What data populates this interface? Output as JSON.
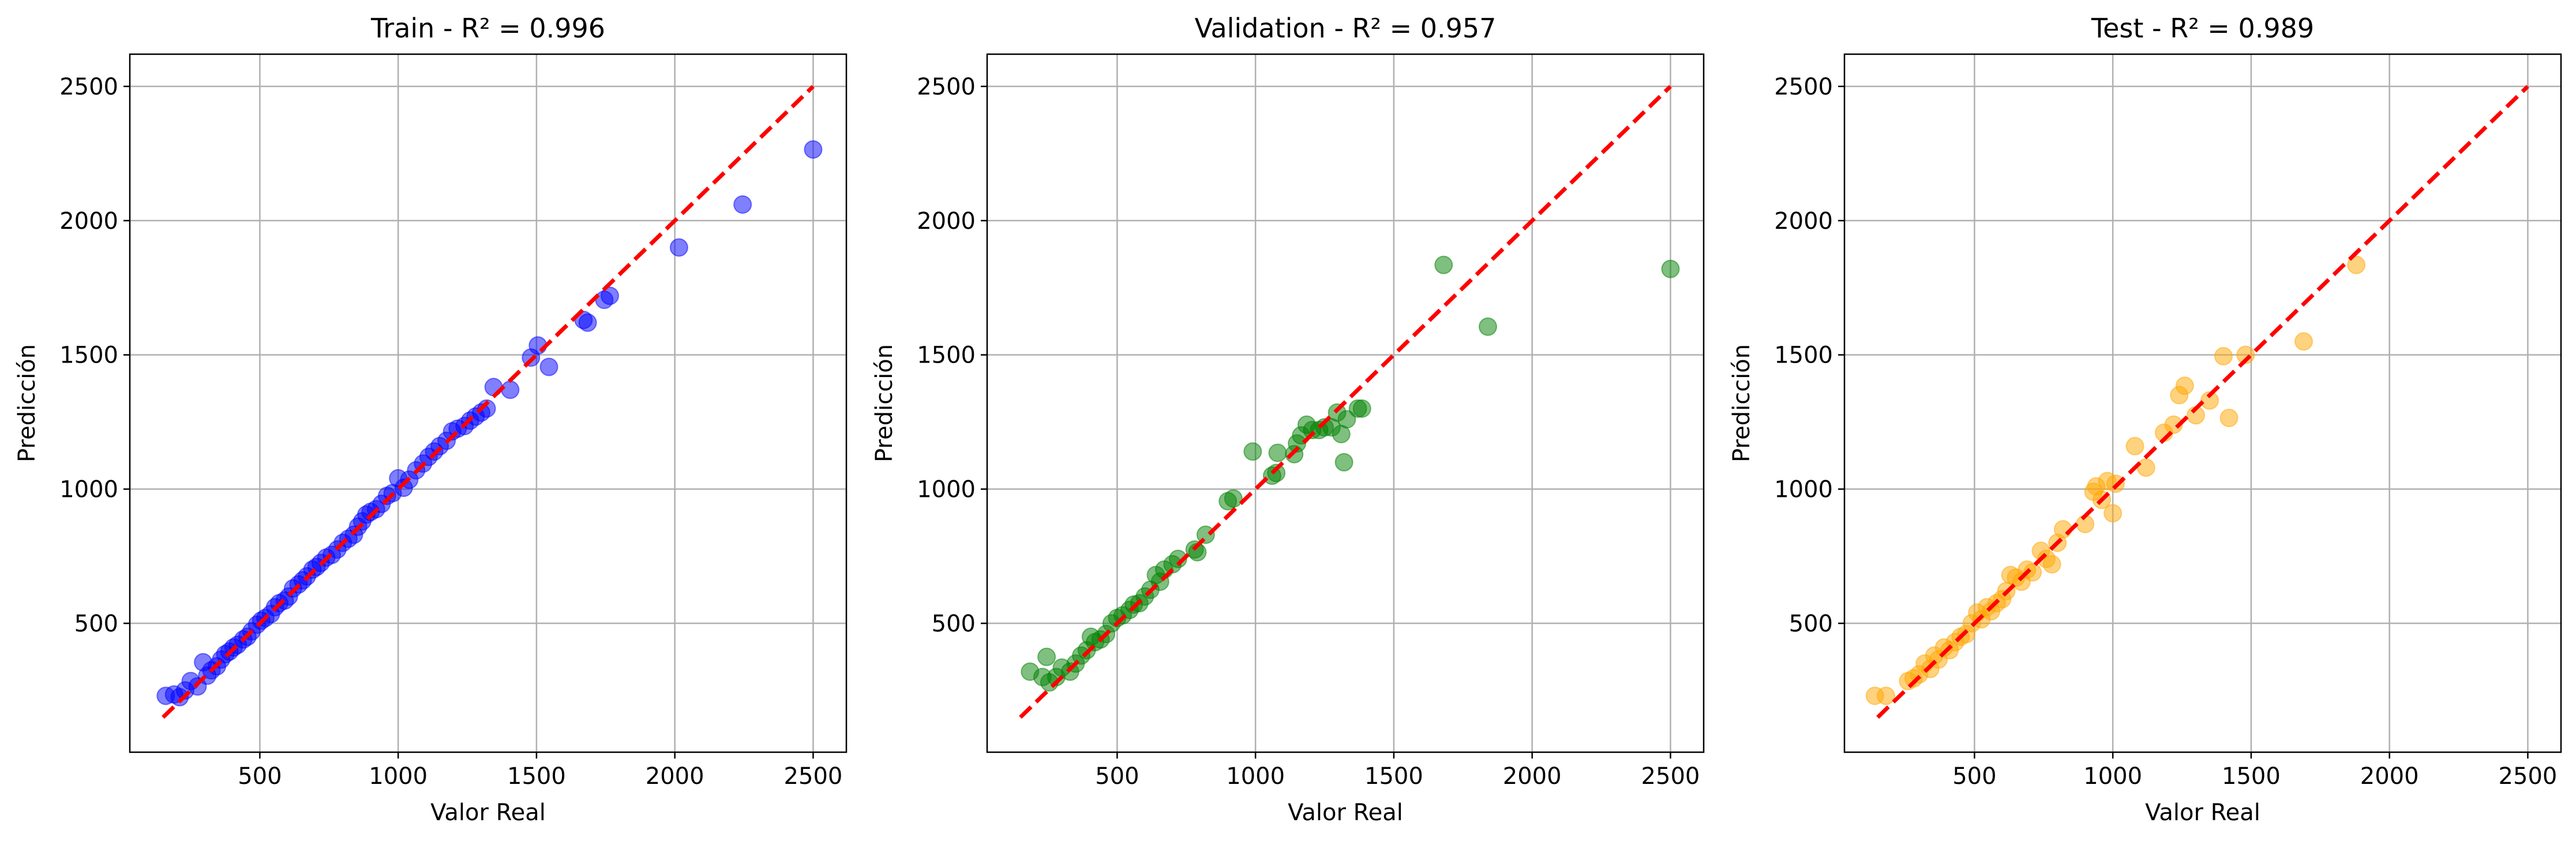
{
  "chart_data": [
    {
      "type": "scatter",
      "title": "Train - R² = 0.996",
      "xlabel": "Valor Real",
      "ylabel": "Predicción",
      "xlim": [
        30,
        2620
      ],
      "ylim": [
        20,
        2620
      ],
      "xticks": [
        500,
        1000,
        1500,
        2000,
        2500
      ],
      "yticks": [
        500,
        1000,
        1500,
        2000,
        2500
      ],
      "grid": true,
      "point_color": "#0000ff",
      "reference_line": {
        "x": [
          150,
          2500
        ],
        "y": [
          150,
          2500
        ],
        "color": "#ff0000",
        "style": "dashed"
      },
      "points": [
        [
          160,
          230
        ],
        [
          190,
          235
        ],
        [
          210,
          225
        ],
        [
          230,
          250
        ],
        [
          250,
          285
        ],
        [
          275,
          265
        ],
        [
          295,
          355
        ],
        [
          310,
          305
        ],
        [
          325,
          325
        ],
        [
          345,
          340
        ],
        [
          360,
          365
        ],
        [
          375,
          385
        ],
        [
          390,
          395
        ],
        [
          405,
          410
        ],
        [
          420,
          420
        ],
        [
          440,
          440
        ],
        [
          455,
          450
        ],
        [
          470,
          470
        ],
        [
          490,
          495
        ],
        [
          505,
          510
        ],
        [
          520,
          520
        ],
        [
          540,
          535
        ],
        [
          555,
          560
        ],
        [
          570,
          575
        ],
        [
          590,
          585
        ],
        [
          605,
          600
        ],
        [
          620,
          630
        ],
        [
          640,
          645
        ],
        [
          655,
          660
        ],
        [
          670,
          675
        ],
        [
          690,
          700
        ],
        [
          705,
          710
        ],
        [
          720,
          725
        ],
        [
          740,
          745
        ],
        [
          760,
          755
        ],
        [
          780,
          775
        ],
        [
          800,
          800
        ],
        [
          820,
          815
        ],
        [
          840,
          830
        ],
        [
          855,
          860
        ],
        [
          870,
          880
        ],
        [
          885,
          905
        ],
        [
          900,
          915
        ],
        [
          920,
          925
        ],
        [
          940,
          945
        ],
        [
          960,
          975
        ],
        [
          980,
          985
        ],
        [
          1000,
          1040
        ],
        [
          1020,
          1005
        ],
        [
          1040,
          1035
        ],
        [
          1065,
          1070
        ],
        [
          1090,
          1095
        ],
        [
          1110,
          1120
        ],
        [
          1130,
          1140
        ],
        [
          1150,
          1160
        ],
        [
          1175,
          1180
        ],
        [
          1195,
          1215
        ],
        [
          1215,
          1225
        ],
        [
          1240,
          1235
        ],
        [
          1260,
          1255
        ],
        [
          1280,
          1270
        ],
        [
          1300,
          1285
        ],
        [
          1320,
          1300
        ],
        [
          1345,
          1380
        ],
        [
          1405,
          1370
        ],
        [
          1480,
          1490
        ],
        [
          1505,
          1535
        ],
        [
          1545,
          1455
        ],
        [
          1670,
          1630
        ],
        [
          1685,
          1620
        ],
        [
          1745,
          1705
        ],
        [
          1765,
          1720
        ],
        [
          2015,
          1900
        ],
        [
          2245,
          2060
        ],
        [
          2500,
          2265
        ]
      ]
    },
    {
      "type": "scatter",
      "title": "Validation - R² = 0.957",
      "xlabel": "Valor Real",
      "ylabel": "Predicción",
      "xlim": [
        30,
        2620
      ],
      "ylim": [
        20,
        2620
      ],
      "xticks": [
        500,
        1000,
        1500,
        2000,
        2500
      ],
      "yticks": [
        500,
        1000,
        1500,
        2000,
        2500
      ],
      "grid": true,
      "point_color": "#008000",
      "reference_line": {
        "x": [
          150,
          2500
        ],
        "y": [
          150,
          2500
        ],
        "color": "#ff0000",
        "style": "dashed"
      },
      "points": [
        [
          185,
          320
        ],
        [
          230,
          300
        ],
        [
          245,
          375
        ],
        [
          255,
          280
        ],
        [
          280,
          300
        ],
        [
          300,
          335
        ],
        [
          330,
          320
        ],
        [
          350,
          350
        ],
        [
          370,
          380
        ],
        [
          390,
          400
        ],
        [
          405,
          450
        ],
        [
          420,
          430
        ],
        [
          440,
          440
        ],
        [
          460,
          460
        ],
        [
          480,
          500
        ],
        [
          500,
          520
        ],
        [
          520,
          530
        ],
        [
          545,
          550
        ],
        [
          560,
          570
        ],
        [
          580,
          575
        ],
        [
          600,
          600
        ],
        [
          620,
          625
        ],
        [
          640,
          680
        ],
        [
          655,
          655
        ],
        [
          670,
          700
        ],
        [
          700,
          720
        ],
        [
          720,
          740
        ],
        [
          780,
          775
        ],
        [
          790,
          765
        ],
        [
          820,
          830
        ],
        [
          900,
          955
        ],
        [
          920,
          965
        ],
        [
          990,
          1140
        ],
        [
          1060,
          1050
        ],
        [
          1075,
          1060
        ],
        [
          1080,
          1135
        ],
        [
          1140,
          1130
        ],
        [
          1150,
          1170
        ],
        [
          1165,
          1200
        ],
        [
          1185,
          1240
        ],
        [
          1205,
          1220
        ],
        [
          1230,
          1220
        ],
        [
          1250,
          1230
        ],
        [
          1275,
          1230
        ],
        [
          1295,
          1285
        ],
        [
          1310,
          1205
        ],
        [
          1320,
          1100
        ],
        [
          1330,
          1260
        ],
        [
          1370,
          1300
        ],
        [
          1385,
          1300
        ],
        [
          1680,
          1835
        ],
        [
          1840,
          1605
        ],
        [
          2500,
          1820
        ]
      ]
    },
    {
      "type": "scatter",
      "title": "Test - R² = 0.989",
      "xlabel": "Valor Real",
      "ylabel": "Predicción",
      "xlim": [
        30,
        2620
      ],
      "ylim": [
        20,
        2620
      ],
      "xticks": [
        500,
        1000,
        1500,
        2000,
        2500
      ],
      "yticks": [
        500,
        1000,
        1500,
        2000,
        2500
      ],
      "grid": true,
      "point_color": "#ffa500",
      "reference_line": {
        "x": [
          150,
          2500
        ],
        "y": [
          150,
          2500
        ],
        "color": "#ff0000",
        "style": "dashed"
      },
      "points": [
        [
          140,
          230
        ],
        [
          180,
          230
        ],
        [
          260,
          285
        ],
        [
          280,
          295
        ],
        [
          300,
          310
        ],
        [
          320,
          350
        ],
        [
          340,
          330
        ],
        [
          355,
          380
        ],
        [
          370,
          365
        ],
        [
          390,
          410
        ],
        [
          410,
          400
        ],
        [
          430,
          430
        ],
        [
          450,
          450
        ],
        [
          470,
          460
        ],
        [
          490,
          500
        ],
        [
          510,
          540
        ],
        [
          525,
          515
        ],
        [
          545,
          560
        ],
        [
          560,
          545
        ],
        [
          580,
          575
        ],
        [
          600,
          590
        ],
        [
          615,
          620
        ],
        [
          630,
          680
        ],
        [
          650,
          670
        ],
        [
          670,
          655
        ],
        [
          690,
          700
        ],
        [
          710,
          690
        ],
        [
          740,
          770
        ],
        [
          760,
          740
        ],
        [
          780,
          720
        ],
        [
          800,
          800
        ],
        [
          820,
          850
        ],
        [
          900,
          870
        ],
        [
          930,
          990
        ],
        [
          940,
          1010
        ],
        [
          960,
          960
        ],
        [
          980,
          1030
        ],
        [
          1000,
          910
        ],
        [
          1010,
          1020
        ],
        [
          1080,
          1160
        ],
        [
          1120,
          1080
        ],
        [
          1185,
          1210
        ],
        [
          1220,
          1240
        ],
        [
          1240,
          1350
        ],
        [
          1260,
          1385
        ],
        [
          1300,
          1275
        ],
        [
          1350,
          1330
        ],
        [
          1400,
          1495
        ],
        [
          1420,
          1265
        ],
        [
          1480,
          1500
        ],
        [
          1690,
          1550
        ],
        [
          1880,
          1835
        ]
      ]
    }
  ]
}
